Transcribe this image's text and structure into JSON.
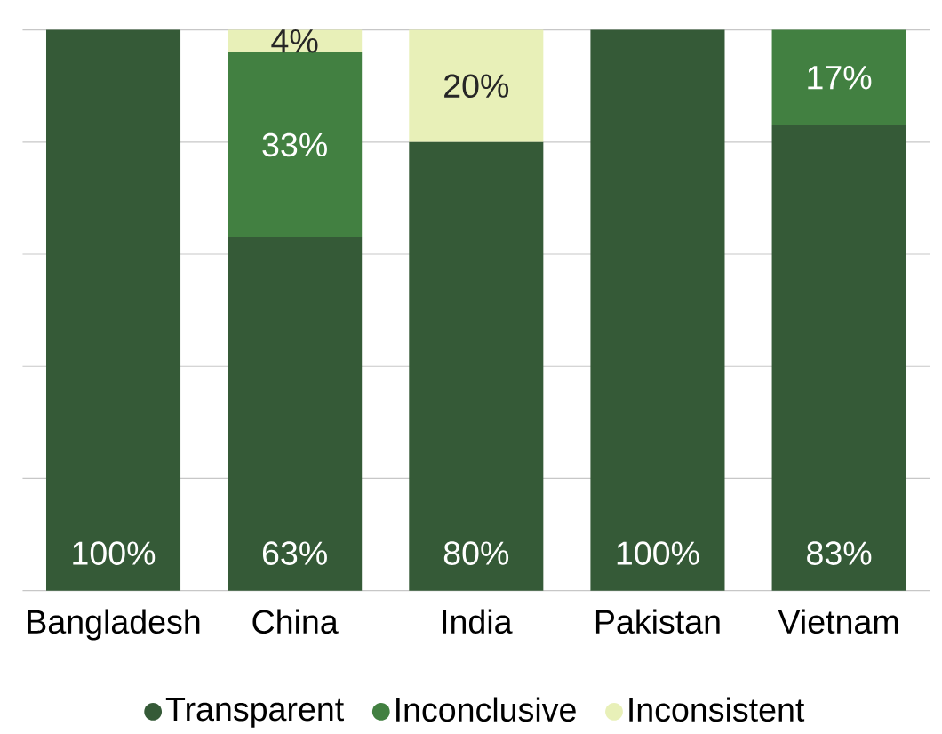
{
  "chart_data": {
    "type": "bar",
    "stacked": true,
    "categories": [
      "Bangladesh",
      "China",
      "India",
      "Pakistan",
      "Vietnam"
    ],
    "series": [
      {
        "name": "Transparent",
        "color": "#355a37",
        "values": [
          100,
          63,
          80,
          100,
          83
        ],
        "value_labels": [
          "100%",
          "63%",
          "80%",
          "100%",
          "83%"
        ]
      },
      {
        "name": "Inconclusive",
        "color": "#428041",
        "values": [
          0,
          33,
          0,
          0,
          17
        ],
        "value_labels": [
          null,
          "33%",
          null,
          null,
          "17%"
        ]
      },
      {
        "name": "Inconsistent",
        "color": "#e8f0b8",
        "values": [
          0,
          4,
          20,
          0,
          0
        ],
        "value_labels": [
          null,
          "4%",
          "20%",
          null,
          null
        ]
      }
    ],
    "ylim": [
      0,
      100
    ],
    "yticks": [
      {
        "value": 0,
        "label": null
      },
      {
        "value": 20,
        "label": null
      },
      {
        "value": 40,
        "label": null
      },
      {
        "value": 60,
        "label": null
      },
      {
        "value": 80,
        "label": null
      },
      {
        "value": 100,
        "label": null
      }
    ],
    "tick_labels": "x",
    "grid": "y",
    "legend": "bottom",
    "marker": "circle"
  }
}
